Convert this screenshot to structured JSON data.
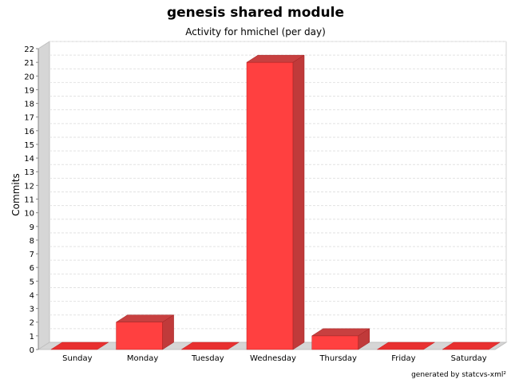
{
  "chart_data": {
    "type": "bar",
    "title": "genesis shared module",
    "subtitle": "Activity for hmichel (per day)",
    "xlabel": "",
    "ylabel": "Commits",
    "categories": [
      "Sunday",
      "Monday",
      "Tuesday",
      "Wednesday",
      "Thursday",
      "Friday",
      "Saturday"
    ],
    "values": [
      0,
      2,
      0,
      21,
      1,
      0,
      0
    ],
    "ylim": [
      0,
      22
    ],
    "yticks": [
      0,
      1,
      2,
      3,
      4,
      5,
      6,
      7,
      8,
      9,
      10,
      11,
      12,
      13,
      14,
      15,
      16,
      17,
      18,
      19,
      20,
      21,
      22
    ],
    "grid": true,
    "legend": "none",
    "bar_color": "#ff4040",
    "footer": "generated by statcvs-xml²"
  }
}
